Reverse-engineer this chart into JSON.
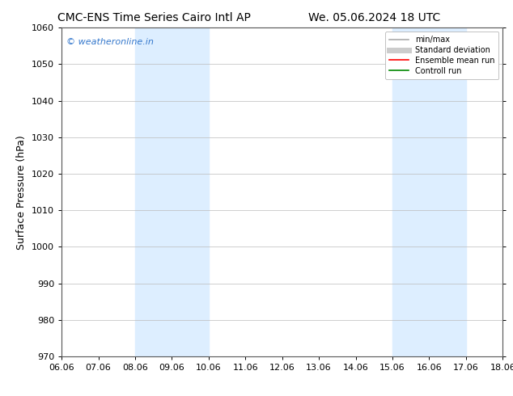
{
  "title_left": "CMC-ENS Time Series Cairo Intl AP",
  "title_right": "We. 05.06.2024 18 UTC",
  "ylabel": "Surface Pressure (hPa)",
  "ylim": [
    970,
    1060
  ],
  "yticks": [
    970,
    980,
    990,
    1000,
    1010,
    1020,
    1030,
    1040,
    1050,
    1060
  ],
  "xlabels": [
    "06.06",
    "07.06",
    "08.06",
    "09.06",
    "10.06",
    "11.06",
    "12.06",
    "13.06",
    "14.06",
    "15.06",
    "16.06",
    "17.06",
    "18.06"
  ],
  "xvalues": [
    0,
    1,
    2,
    3,
    4,
    5,
    6,
    7,
    8,
    9,
    10,
    11,
    12
  ],
  "shaded_regions": [
    {
      "xmin": 2,
      "xmax": 4,
      "color": "#ddeeff"
    },
    {
      "xmin": 9,
      "xmax": 11,
      "color": "#ddeeff"
    }
  ],
  "watermark_text": "© weatheronline.in",
  "watermark_color": "#3377cc",
  "legend_entries": [
    {
      "label": "min/max",
      "color": "#aaaaaa",
      "lw": 1.2,
      "style": "solid"
    },
    {
      "label": "Standard deviation",
      "color": "#cccccc",
      "lw": 5,
      "style": "solid"
    },
    {
      "label": "Ensemble mean run",
      "color": "#ff0000",
      "lw": 1.2,
      "style": "solid"
    },
    {
      "label": "Controll run",
      "color": "#008800",
      "lw": 1.2,
      "style": "solid"
    }
  ],
  "background_color": "#ffffff",
  "grid_color": "#bbbbbb",
  "title_fontsize": 10,
  "axis_label_fontsize": 9,
  "tick_fontsize": 8,
  "legend_fontsize": 7
}
